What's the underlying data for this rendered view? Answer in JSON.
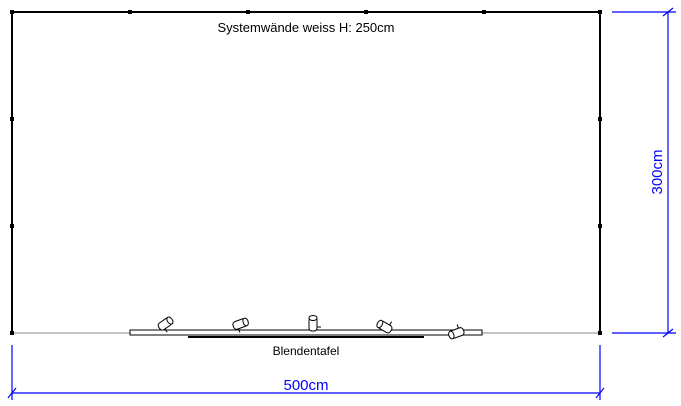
{
  "plan": {
    "wall_label": "Systemwände weiss  H: 250cm",
    "panel_label": "Blendentafel",
    "width_dimension": "500cm",
    "depth_dimension": "300cm",
    "wall_color": "#000000",
    "dimension_color": "#0000ff",
    "lamp_count": 5
  }
}
